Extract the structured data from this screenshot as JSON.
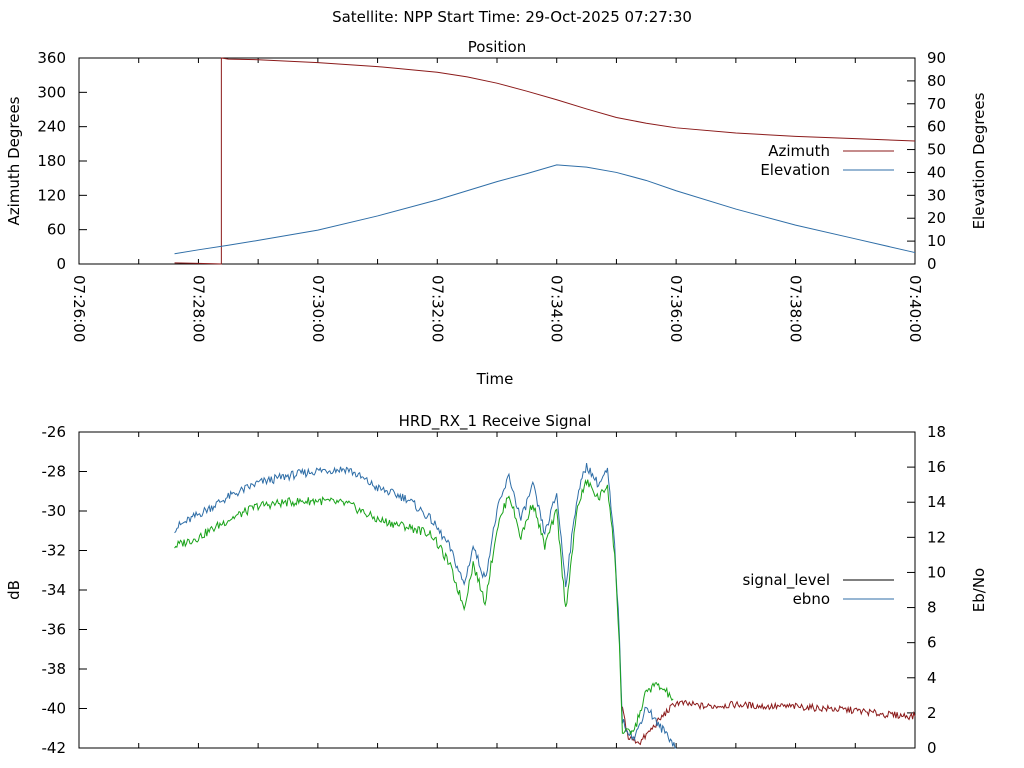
{
  "header": {
    "title": "Satellite: NPP    Start Time: 29-Oct-2025 07:27:30"
  },
  "chart_data": [
    {
      "type": "line",
      "title": "Position",
      "xlabel": "Time",
      "ylabel": "Azimuth Degrees",
      "y2label": "Elevation Degrees",
      "x_ticks": [
        "07:26:00",
        "07:28:00",
        "07:30:00",
        "07:32:00",
        "07:34:00",
        "07:36:00",
        "07:38:00",
        "07:40:00"
      ],
      "xlim_minutes": [
        0,
        14
      ],
      "ylim": [
        0,
        360
      ],
      "y_ticks": [
        "0",
        "60",
        "120",
        "180",
        "240",
        "300",
        "360"
      ],
      "y2lim": [
        0,
        90
      ],
      "y2_ticks": [
        "0",
        "10",
        "20",
        "30",
        "40",
        "50",
        "60",
        "70",
        "80",
        "90"
      ],
      "legend_position": "right",
      "grid": false,
      "series": [
        {
          "name": "Azimuth",
          "axis": "y",
          "color": "#8b1a1a",
          "x": [
            1.6,
            2.0,
            2.25,
            2.5,
            3,
            4,
            5,
            6,
            6.5,
            7,
            7.5,
            8,
            8.5,
            9,
            9.5,
            10,
            11,
            12,
            13,
            14
          ],
          "y": [
            2,
            1,
            0.5,
            358,
            357,
            352,
            345,
            335,
            327,
            316,
            302,
            287,
            271,
            256,
            246,
            238,
            229,
            223,
            219,
            215
          ]
        },
        {
          "name": "Elevation",
          "axis": "y2",
          "color": "#2f6ea7",
          "x": [
            1.6,
            2.0,
            2.5,
            3,
            4,
            5,
            6,
            7,
            7.5,
            8,
            8.5,
            9,
            9.5,
            10,
            11,
            12,
            13,
            14
          ],
          "y": [
            4.5,
            6.2,
            8.2,
            10.3,
            14.8,
            21,
            28,
            36,
            39.5,
            43.3,
            42.3,
            40,
            36.5,
            32,
            24,
            17,
            11,
            5
          ]
        }
      ]
    },
    {
      "type": "line",
      "title": "HRD_RX_1 Receive Signal",
      "xlabel": "",
      "ylabel": "dB",
      "y2label": "Eb/No",
      "xlim_minutes": [
        0,
        14
      ],
      "ylim": [
        -42,
        -26
      ],
      "y_ticks": [
        "-26",
        "-28",
        "-30",
        "-32",
        "-34",
        "-36",
        "-38",
        "-40",
        "-42"
      ],
      "y2lim": [
        0,
        18
      ],
      "y2_ticks": [
        "0",
        "2",
        "4",
        "6",
        "8",
        "10",
        "12",
        "14",
        "16",
        "18"
      ],
      "legend_position": "right",
      "grid": false,
      "series": [
        {
          "name": "signal_level",
          "axis": "y",
          "color": "#000000",
          "x": [
            1.6,
            2.0,
            2.5,
            3.0,
            3.5,
            4.0,
            4.5,
            5.0,
            5.5,
            5.9,
            6.2,
            6.45,
            6.6,
            6.8,
            7.0,
            7.2,
            7.4,
            7.6,
            7.8,
            8.0,
            8.15,
            8.35,
            8.5,
            8.7,
            8.85,
            8.97,
            9.05,
            9.1,
            9.2,
            9.4,
            9.6,
            9.8,
            10.0,
            10.5,
            11.0,
            11.5,
            12.0,
            12.5,
            13.0,
            13.5,
            14.0
          ],
          "y": [
            -31.5,
            -31.0,
            -30.4,
            -30.0,
            -29.7,
            -29.5,
            -29.6,
            -30.5,
            -31.3,
            -31.6,
            -33.0,
            -34.5,
            -32.0,
            -34.0,
            -30.3,
            -29.0,
            -31.0,
            -29.5,
            -32.0,
            -30.0,
            -34.8,
            -29.5,
            -28.3,
            -29.0,
            -28.4,
            -32.0,
            -36.5,
            -40.0,
            -41.5,
            -41.7,
            -41.0,
            -40.3,
            -39.7,
            -39.9,
            -39.8,
            -39.9,
            -39.9,
            -40.0,
            -40.1,
            -40.3,
            -40.4
          ]
        },
        {
          "name": "ebno",
          "axis": "y2",
          "color": "#2f6ea7",
          "x": [
            1.6,
            2.0,
            2.5,
            3.0,
            3.5,
            4.0,
            4.5,
            5.0,
            5.5,
            5.9,
            6.2,
            6.45,
            6.6,
            6.8,
            7.0,
            7.2,
            7.4,
            7.6,
            7.8,
            8.0,
            8.15,
            8.35,
            8.5,
            8.7,
            8.85,
            8.97,
            9.05,
            9.1,
            9.3,
            9.5,
            9.7,
            9.85,
            10.0
          ],
          "y": [
            12.5,
            13.3,
            14.3,
            15.1,
            15.5,
            15.8,
            15.9,
            14.8,
            14.2,
            13.0,
            11.5,
            9.3,
            11.5,
            9.6,
            13.5,
            15.5,
            13.0,
            15.0,
            12.2,
            14.5,
            9.3,
            14.5,
            16.1,
            15.0,
            15.8,
            11.5,
            6.5,
            1.5,
            0.5,
            2.4,
            1.3,
            0.8,
            0.0
          ]
        },
        {
          "name": "",
          "axis": "y2",
          "color": "#1aa31a",
          "x": [
            1.6,
            2.0,
            2.5,
            3.0,
            3.5,
            4.0,
            4.5,
            5.0,
            5.5,
            5.9,
            6.2,
            6.45,
            6.6,
            6.8,
            7.0,
            7.2,
            7.4,
            7.6,
            7.8,
            8.0,
            8.15,
            8.35,
            8.5,
            8.7,
            8.85,
            8.97,
            9.05,
            9.1,
            9.3,
            9.5,
            9.65,
            9.8,
            9.95
          ],
          "y": [
            11.5,
            12.0,
            13.0,
            13.8,
            14.0,
            14.1,
            13.9,
            13.0,
            12.6,
            12.2,
            10.5,
            8.0,
            10.5,
            8.3,
            12.5,
            14.5,
            12.0,
            14.0,
            11.5,
            13.5,
            7.9,
            13.8,
            15.2,
            14.2,
            15.0,
            11.0,
            6.0,
            0.8,
            1.0,
            3.2,
            3.6,
            3.3,
            2.8
          ]
        }
      ]
    }
  ]
}
